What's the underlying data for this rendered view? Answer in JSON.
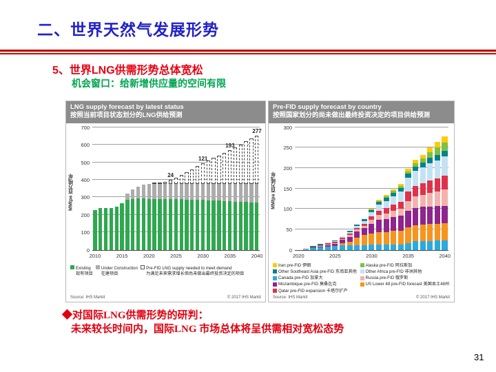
{
  "slide": {
    "title": "二、世界天然气发展形势",
    "section_title": "5、世界LNG供需形势总体宽松",
    "section_subtitle": "机会窗口：给新增供应量的空间有限",
    "conclusion_heading": "◆对国际LNG供需形势的研判：",
    "conclusion_body": "未来较长时间内，国际LNG 市场总体将呈供需相对宽松态势",
    "page_number": "31"
  },
  "colors": {
    "title_blue": "#2121C8",
    "accent_red": "#E60012",
    "accent_green": "#00A551",
    "chart_header_gray": "#8C8C8C",
    "existing_green": "#2FA84F",
    "under_construction_gray": "#ACACAC"
  },
  "chart_data": [
    {
      "type": "bar",
      "stacked": true,
      "title_en": "LNG supply forecast by latest status",
      "title_zh": "按照当前项目状态划分的LNG供给预测",
      "ylabel": "MMtpa 百万吨/年",
      "ylim": [
        0,
        700
      ],
      "ytick_step": 100,
      "x": [
        2010,
        2011,
        2012,
        2013,
        2014,
        2015,
        2016,
        2017,
        2018,
        2019,
        2020,
        2021,
        2022,
        2023,
        2024,
        2025,
        2026,
        2027,
        2028,
        2029,
        2030,
        2031,
        2032,
        2033,
        2034,
        2035,
        2036,
        2037,
        2038,
        2039,
        2040
      ],
      "xticks": [
        2010,
        2015,
        2020,
        2025,
        2030,
        2035,
        2040
      ],
      "series": [
        {
          "name": "Existing",
          "name_zh": "现有项目",
          "color": "#2FA84F",
          "values": [
            225,
            240,
            238,
            240,
            248,
            265,
            285,
            290,
            292,
            292,
            291,
            291,
            290,
            290,
            290,
            290,
            288,
            287,
            286,
            285,
            284,
            283,
            282,
            281,
            280,
            278,
            276,
            275,
            273,
            271,
            270
          ]
        },
        {
          "name": "Under Construction",
          "name_zh": "在建项目",
          "color": "#ACACAC",
          "values": [
            0,
            0,
            0,
            0,
            0,
            0,
            35,
            55,
            70,
            79,
            84,
            84,
            85,
            85,
            85,
            85,
            87,
            88,
            89,
            90,
            91,
            92,
            93,
            94,
            95,
            97,
            99,
            100,
            102,
            104,
            105
          ]
        },
        {
          "name": "Pre-FID LNG supply needed to meet demand",
          "name_zh": "为满足未来需求增长但尚未做出最终投资决定的项目",
          "color": "#ffffff",
          "style": "dashed",
          "values": [
            0,
            0,
            0,
            0,
            0,
            0,
            0,
            0,
            0,
            0,
            0,
            3,
            8,
            15,
            24,
            38,
            52,
            68,
            85,
            103,
            121,
            135,
            149,
            164,
            178,
            193,
            210,
            227,
            244,
            260,
            277
          ]
        }
      ],
      "annotations": [
        {
          "x": 2024,
          "label": "24"
        },
        {
          "x": 2030,
          "label": "121"
        },
        {
          "x": 2035,
          "label": "193"
        },
        {
          "x": 2040,
          "label": "277"
        }
      ],
      "legend_layout": "stacked-en-zh",
      "source": "Source: IHS Markit",
      "copyright": "© 2017 IHS Markit"
    },
    {
      "type": "bar",
      "stacked": true,
      "title_en": "Pre-FID supply forecast by country",
      "title_zh": "按照国家划分的尚未做出最终投资决定的项目供给预测",
      "ylabel": "MMtpa 百万吨/年",
      "ylim": [
        0,
        300
      ],
      "ytick_step": 50,
      "x": [
        2020,
        2021,
        2022,
        2023,
        2024,
        2025,
        2026,
        2027,
        2028,
        2029,
        2030,
        2031,
        2032,
        2033,
        2034,
        2035,
        2036,
        2037,
        2038,
        2039,
        2040
      ],
      "xticks": [
        2020,
        2025,
        2030,
        2035,
        2040
      ],
      "series": [
        {
          "name": "Canada pre-FID",
          "name_zh": "加拿大",
          "color": "#29ABE2",
          "values": [
            0,
            2,
            4,
            7,
            8,
            9,
            11,
            11,
            12,
            12,
            13,
            13,
            13,
            13,
            13,
            16,
            21,
            22,
            22,
            23,
            23
          ]
        },
        {
          "name": "US Lower 48 pre-FID forecast",
          "name_zh": "美国本土48州",
          "color": "#F7941D",
          "values": [
            0,
            0,
            0,
            0,
            0,
            0,
            5,
            9,
            18,
            24,
            27,
            30,
            31,
            33,
            34,
            39,
            40,
            40,
            41,
            41,
            42
          ]
        },
        {
          "name": "Mozambique pre-FID",
          "name_zh": "莫桑比克",
          "color": "#8E258D",
          "values": [
            0,
            0,
            0,
            1,
            3,
            5,
            8,
            12,
            15,
            17,
            24,
            30,
            32,
            34,
            36,
            40,
            42,
            43,
            43,
            43,
            43
          ]
        },
        {
          "name": "Russia pre-FID",
          "name_zh": "俄罗斯",
          "color": "#F2B3AC",
          "values": [
            0,
            1,
            1,
            1,
            2,
            2,
            3,
            4,
            5,
            6,
            10,
            12,
            13,
            15,
            17,
            25,
            28,
            30,
            33,
            36,
            40
          ]
        },
        {
          "name": "Qatar pre-FID expansion",
          "name_zh": "卡塔尔扩产",
          "color": "#E0314B",
          "values": [
            0,
            0,
            1,
            2,
            3,
            3,
            3,
            4,
            4,
            5,
            8,
            11,
            13,
            15,
            17,
            22,
            26,
            28,
            31,
            32,
            33
          ]
        },
        {
          "name": "Other Africa pre-FID",
          "name_zh": "非洲其他",
          "color": "#C3E3F5",
          "values": [
            0,
            1,
            1,
            1,
            2,
            3,
            3,
            4,
            5,
            7,
            10,
            15,
            18,
            21,
            25,
            34,
            36,
            38,
            42,
            44,
            47
          ]
        },
        {
          "name": "Other Southeast Asia pre-FID",
          "name_zh": "东南亚其他",
          "color": "#00838A",
          "values": [
            0,
            0,
            2,
            2,
            1,
            2,
            1,
            2,
            3,
            4,
            5,
            6,
            7,
            8,
            9,
            10,
            11,
            12,
            13,
            14,
            15
          ]
        },
        {
          "name": "Alaska pre-FID",
          "name_zh": "阿拉斯加",
          "color": "#7DC242",
          "values": [
            0,
            0,
            0,
            0,
            0,
            0,
            0,
            0,
            0,
            1,
            2,
            3,
            4,
            5,
            6,
            6,
            8,
            10,
            14,
            17,
            19
          ]
        },
        {
          "name": "Iran pre-FID",
          "name_zh": "伊朗",
          "color": "#FFCB05",
          "values": [
            0,
            0,
            0,
            0,
            0,
            0,
            0,
            0,
            0,
            0,
            1,
            2,
            3,
            4,
            5,
            6,
            8,
            10,
            12,
            14,
            15
          ]
        }
      ],
      "legend_order": [
        8,
        6,
        0,
        2,
        4,
        7,
        5,
        3,
        1
      ],
      "legend_layout": "two-col",
      "source": "Source: IHS Markit",
      "copyright": "© 2017 IHS Markit"
    }
  ]
}
